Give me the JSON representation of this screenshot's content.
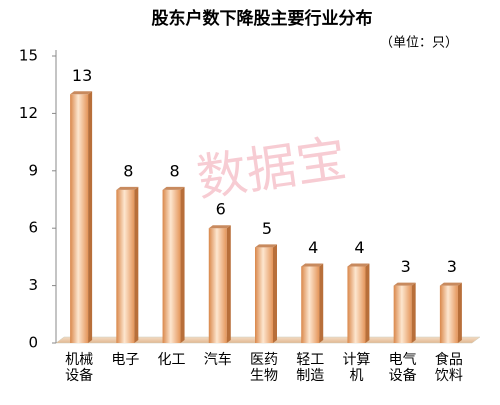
{
  "chart_data": {
    "type": "bar3d",
    "title": "股东户数下降股主要行业分布",
    "subtitle": "（单位：只）",
    "watermark": "数据宝",
    "categories": [
      "机械设备",
      "电子",
      "化工",
      "汽车",
      "医药生物",
      "轻工制造",
      "计算机",
      "电气设备",
      "食品饮料"
    ],
    "values": [
      13,
      8,
      8,
      6,
      5,
      4,
      4,
      3,
      3
    ],
    "color": "#e8985a",
    "ylim": [
      0,
      15
    ],
    "yticks": [
      0,
      3,
      6,
      9,
      12,
      15
    ]
  }
}
